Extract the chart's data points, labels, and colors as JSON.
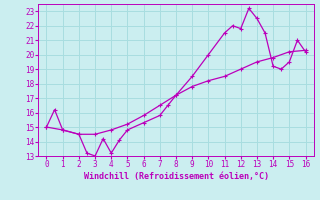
{
  "xlabel": "Windchill (Refroidissement éolien,°C)",
  "xlim": [
    -0.5,
    16.5
  ],
  "ylim": [
    13,
    23.5
  ],
  "xticks": [
    0,
    1,
    2,
    3,
    4,
    5,
    6,
    7,
    8,
    9,
    10,
    11,
    12,
    13,
    14,
    15,
    16
  ],
  "yticks": [
    13,
    14,
    15,
    16,
    17,
    18,
    19,
    20,
    21,
    22,
    23
  ],
  "bg_color": "#cbeef0",
  "grid_color": "#a8dde0",
  "line_color": "#bb00bb",
  "curve1_x": [
    0,
    0.5,
    1,
    2,
    2.5,
    3,
    3.5,
    4,
    4.5,
    5,
    6,
    7,
    7.5,
    8,
    9,
    10,
    11,
    11.5,
    12,
    12.5,
    13,
    13.5,
    14,
    14.5,
    15,
    15.5,
    16
  ],
  "curve1_y": [
    15,
    16.2,
    14.8,
    14.5,
    13.2,
    13.0,
    14.2,
    13.2,
    14.1,
    14.8,
    15.3,
    15.8,
    16.5,
    17.2,
    18.5,
    20.0,
    21.5,
    22.0,
    21.8,
    23.2,
    22.5,
    21.5,
    19.2,
    19.0,
    19.5,
    21.0,
    20.2
  ],
  "curve2_x": [
    0,
    1,
    2,
    3,
    4,
    5,
    6,
    7,
    8,
    9,
    10,
    11,
    12,
    13,
    14,
    15,
    16
  ],
  "curve2_y": [
    15.0,
    14.8,
    14.5,
    14.5,
    14.8,
    15.2,
    15.8,
    16.5,
    17.2,
    17.8,
    18.2,
    18.5,
    19.0,
    19.5,
    19.8,
    20.2,
    20.3
  ],
  "marker_size": 2.5,
  "linewidth": 0.9
}
